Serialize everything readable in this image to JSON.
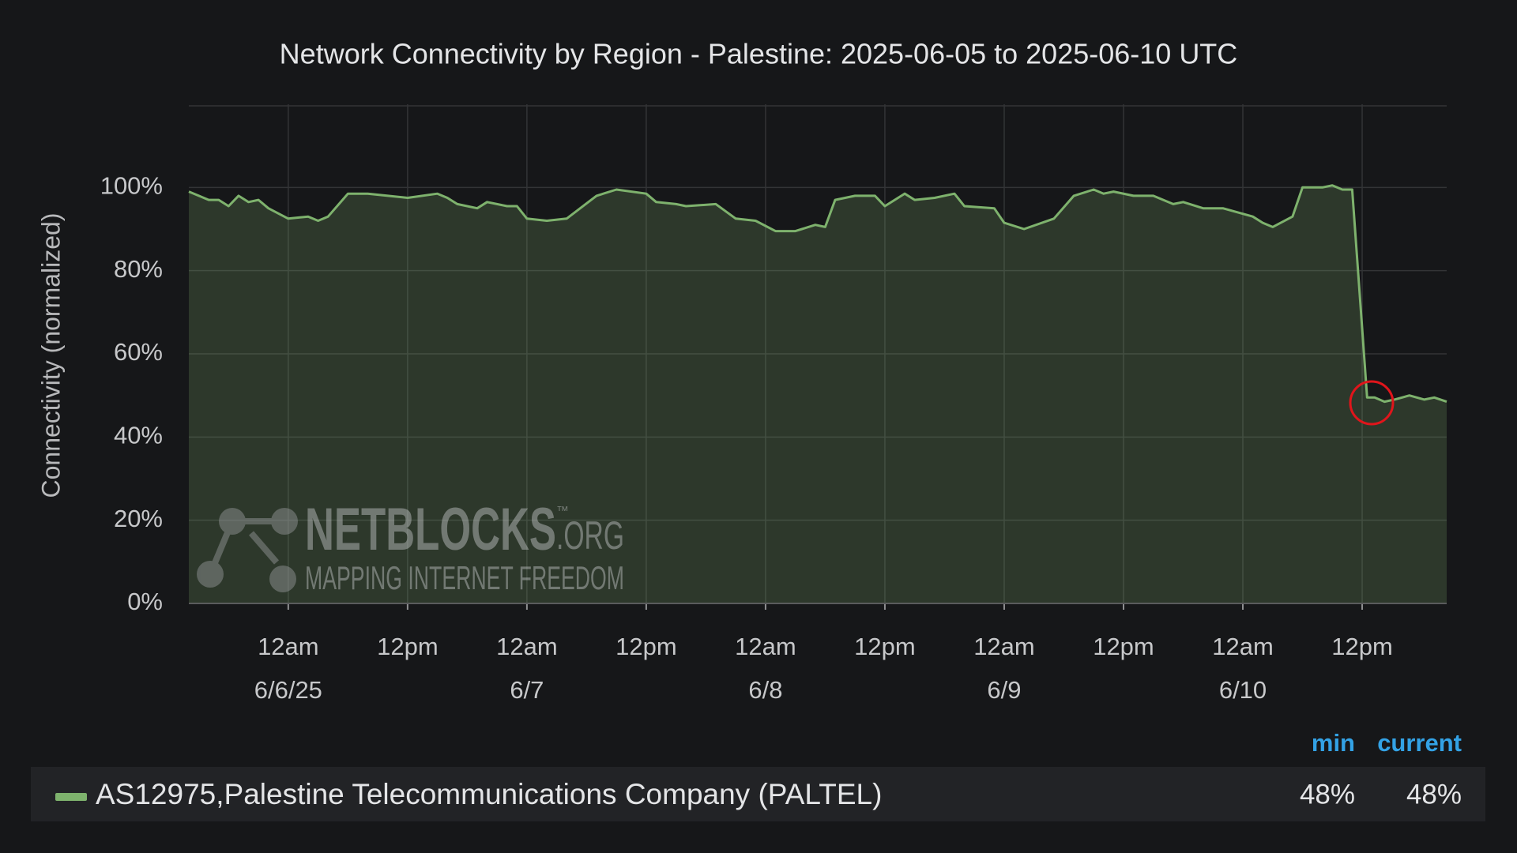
{
  "chart_data": {
    "type": "area",
    "title": "Network Connectivity by Region - Palestine: 2025-06-05 to 2025-06-10 UTC",
    "y_label": "Connectivity (normalized)",
    "x": [
      "2025-06-05T14:00Z",
      "2025-06-05T16:00Z",
      "2025-06-05T17:00Z",
      "2025-06-05T18:00Z",
      "2025-06-05T19:00Z",
      "2025-06-05T20:00Z",
      "2025-06-05T21:00Z",
      "2025-06-05T22:00Z",
      "2025-06-06T00:00Z",
      "2025-06-06T02:00Z",
      "2025-06-06T03:00Z",
      "2025-06-06T04:00Z",
      "2025-06-06T06:00Z",
      "2025-06-06T08:00Z",
      "2025-06-06T12:00Z",
      "2025-06-06T15:00Z",
      "2025-06-06T16:00Z",
      "2025-06-06T17:00Z",
      "2025-06-06T19:00Z",
      "2025-06-06T20:00Z",
      "2025-06-06T22:00Z",
      "2025-06-06T23:00Z",
      "2025-06-07T00:00Z",
      "2025-06-07T02:00Z",
      "2025-06-07T04:00Z",
      "2025-06-07T07:00Z",
      "2025-06-07T09:00Z",
      "2025-06-07T12:00Z",
      "2025-06-07T13:00Z",
      "2025-06-07T15:00Z",
      "2025-06-07T16:00Z",
      "2025-06-07T19:00Z",
      "2025-06-07T21:00Z",
      "2025-06-07T23:00Z",
      "2025-06-08T01:00Z",
      "2025-06-08T03:00Z",
      "2025-06-08T05:00Z",
      "2025-06-08T06:00Z",
      "2025-06-08T07:00Z",
      "2025-06-08T09:00Z",
      "2025-06-08T11:00Z",
      "2025-06-08T12:00Z",
      "2025-06-08T14:00Z",
      "2025-06-08T15:00Z",
      "2025-06-08T17:00Z",
      "2025-06-08T19:00Z",
      "2025-06-08T20:00Z",
      "2025-06-08T23:00Z",
      "2025-06-09T00:00Z",
      "2025-06-09T02:00Z",
      "2025-06-09T05:00Z",
      "2025-06-09T07:00Z",
      "2025-06-09T09:00Z",
      "2025-06-09T10:00Z",
      "2025-06-09T11:00Z",
      "2025-06-09T13:00Z",
      "2025-06-09T15:00Z",
      "2025-06-09T17:00Z",
      "2025-06-09T18:00Z",
      "2025-06-09T20:00Z",
      "2025-06-09T22:00Z",
      "2025-06-10T01:00Z",
      "2025-06-10T02:00Z",
      "2025-06-10T03:00Z",
      "2025-06-10T05:00Z",
      "2025-06-10T06:00Z",
      "2025-06-10T08:00Z",
      "2025-06-10T09:00Z",
      "2025-06-10T10:00Z",
      "2025-06-10T11:00Z",
      "2025-06-10T12:30Z",
      "2025-06-10T13:15Z",
      "2025-06-10T14:15Z",
      "2025-06-10T15:15Z",
      "2025-06-10T16:45Z",
      "2025-06-10T18:15Z",
      "2025-06-10T19:15Z",
      "2025-06-10T20:30Z"
    ],
    "series": [
      {
        "name": "AS12975,Palestine Telecommunications Company (PALTEL)",
        "color": "#7eb26d",
        "values": [
          99,
          97,
          97,
          95.5,
          98,
          96.5,
          97,
          95,
          92.5,
          93,
          92,
          93,
          98.5,
          98.5,
          97.5,
          98.5,
          97.5,
          96,
          95,
          96.5,
          95.5,
          95.5,
          92.5,
          92,
          92.5,
          98,
          99.5,
          98.5,
          96.5,
          96,
          95.5,
          96,
          92.5,
          92,
          89.5,
          89.5,
          91,
          90.5,
          97,
          98,
          98,
          95.5,
          98.5,
          97,
          97.5,
          98.5,
          95.5,
          95,
          91.5,
          90,
          92.5,
          98,
          99.5,
          98.5,
          99,
          98,
          98,
          96,
          96.5,
          95,
          95,
          93,
          91.5,
          90.5,
          93,
          100,
          100,
          100.5,
          99.5,
          99.5,
          49.5,
          49.5,
          48.5,
          49,
          50,
          49,
          49.5,
          48.5
        ]
      }
    ],
    "xlim": [
      "2025-06-05T14:00Z",
      "2025-06-10T20:30Z"
    ],
    "xticks": [
      {
        "value": "2025-06-06T00:00Z",
        "label": "12am"
      },
      {
        "value": "2025-06-06T12:00Z",
        "label": "12pm"
      },
      {
        "value": "2025-06-07T00:00Z",
        "label": "12am"
      },
      {
        "value": "2025-06-07T12:00Z",
        "label": "12pm"
      },
      {
        "value": "2025-06-08T00:00Z",
        "label": "12am"
      },
      {
        "value": "2025-06-08T12:00Z",
        "label": "12pm"
      },
      {
        "value": "2025-06-09T00:00Z",
        "label": "12am"
      },
      {
        "value": "2025-06-09T12:00Z",
        "label": "12pm"
      },
      {
        "value": "2025-06-10T00:00Z",
        "label": "12am"
      },
      {
        "value": "2025-06-10T12:00Z",
        "label": "12pm"
      }
    ],
    "xtick_dates": [
      {
        "value": "2025-06-06T00:00Z",
        "label": "6/6/25"
      },
      {
        "value": "2025-06-07T00:00Z",
        "label": "6/7"
      },
      {
        "value": "2025-06-08T00:00Z",
        "label": "6/8"
      },
      {
        "value": "2025-06-09T00:00Z",
        "label": "6/9"
      },
      {
        "value": "2025-06-10T00:00Z",
        "label": "6/10"
      }
    ],
    "ylim": [
      0,
      120
    ],
    "yticks": [
      {
        "value": 0,
        "label": "0%"
      },
      {
        "value": 20,
        "label": "20%"
      },
      {
        "value": 40,
        "label": "40%"
      },
      {
        "value": 60,
        "label": "60%"
      },
      {
        "value": 80,
        "label": "80%"
      },
      {
        "value": 100,
        "label": "100%"
      }
    ],
    "grid": true,
    "legend_stats": {
      "columns": [
        "min",
        "current"
      ],
      "values": [
        48,
        48
      ],
      "value_labels": [
        "48%",
        "48%"
      ]
    },
    "watermark": {
      "brand": "NETBLOCKS",
      "tm": "™",
      "suffix": ".ORG",
      "tagline": "MAPPING INTERNET FREEDOM"
    }
  }
}
